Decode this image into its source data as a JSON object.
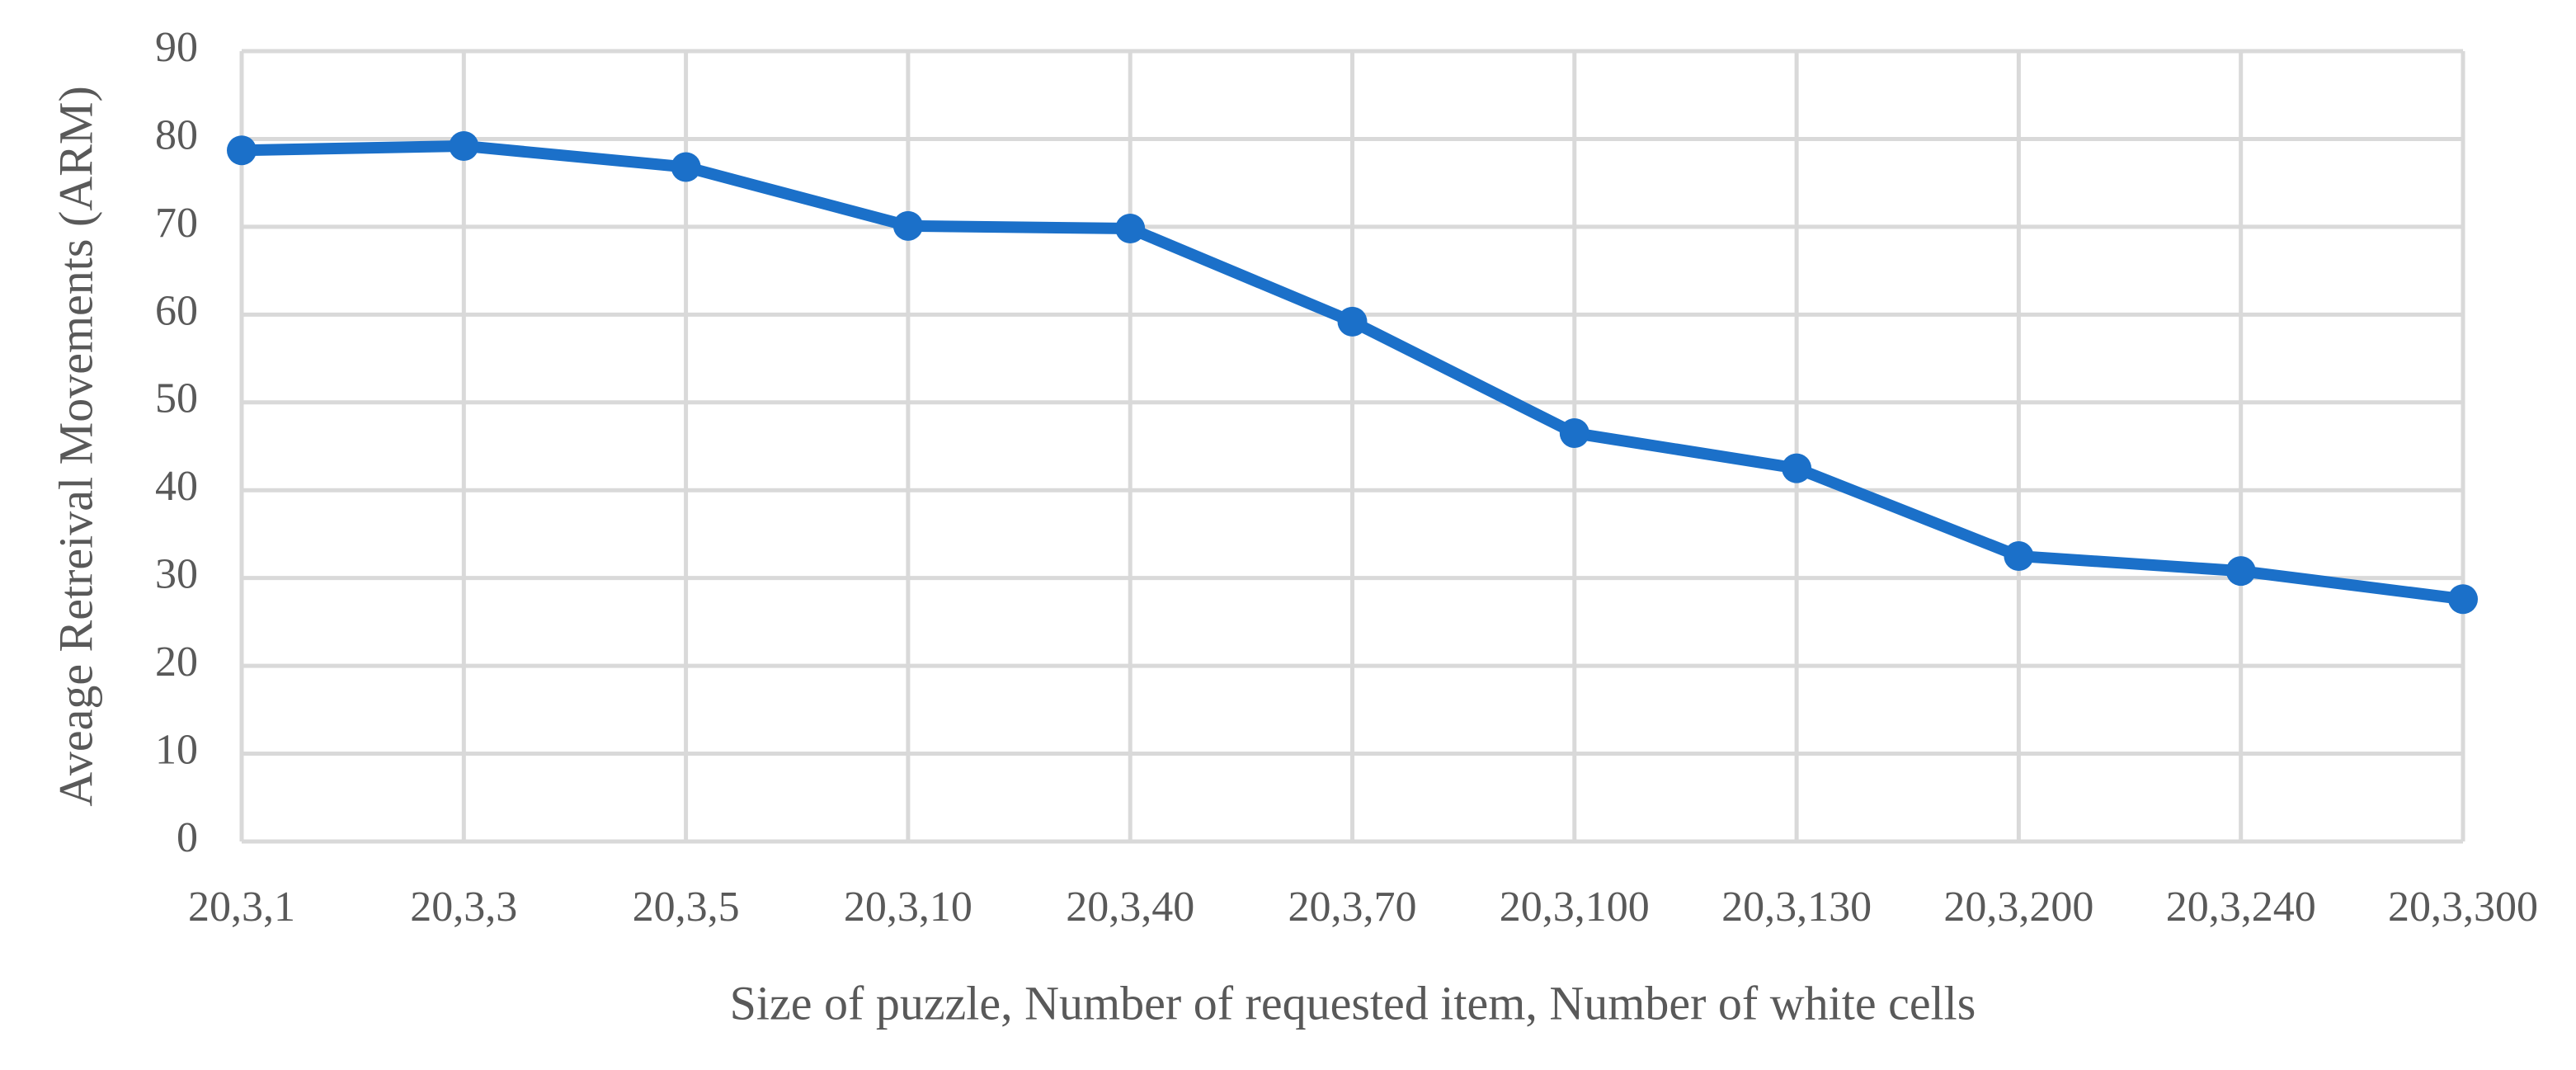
{
  "chart_data": {
    "type": "line",
    "x_label": "Size of puzzle, Number of requested item, Number of white cells",
    "y_label": "Aveage Retreival Movements (ARM)",
    "categories": [
      "20,3,1",
      "20,3,3",
      "20,3,5",
      "20,3,10",
      "20,3,40",
      "20,3,70",
      "20,3,100",
      "20,3,130",
      "20,3,200",
      "20,3,240",
      "20,3,300"
    ],
    "series": [
      {
        "name": "ARM",
        "color": "#1b70c9",
        "values": [
          78.7,
          79.2,
          76.8,
          70.1,
          69.8,
          59.2,
          46.5,
          42.5,
          32.5,
          30.8,
          27.6
        ]
      }
    ],
    "ylim": [
      0,
      90
    ],
    "yticks": [
      0,
      10,
      20,
      30,
      40,
      50,
      60,
      70,
      80,
      90
    ],
    "grid": true
  }
}
